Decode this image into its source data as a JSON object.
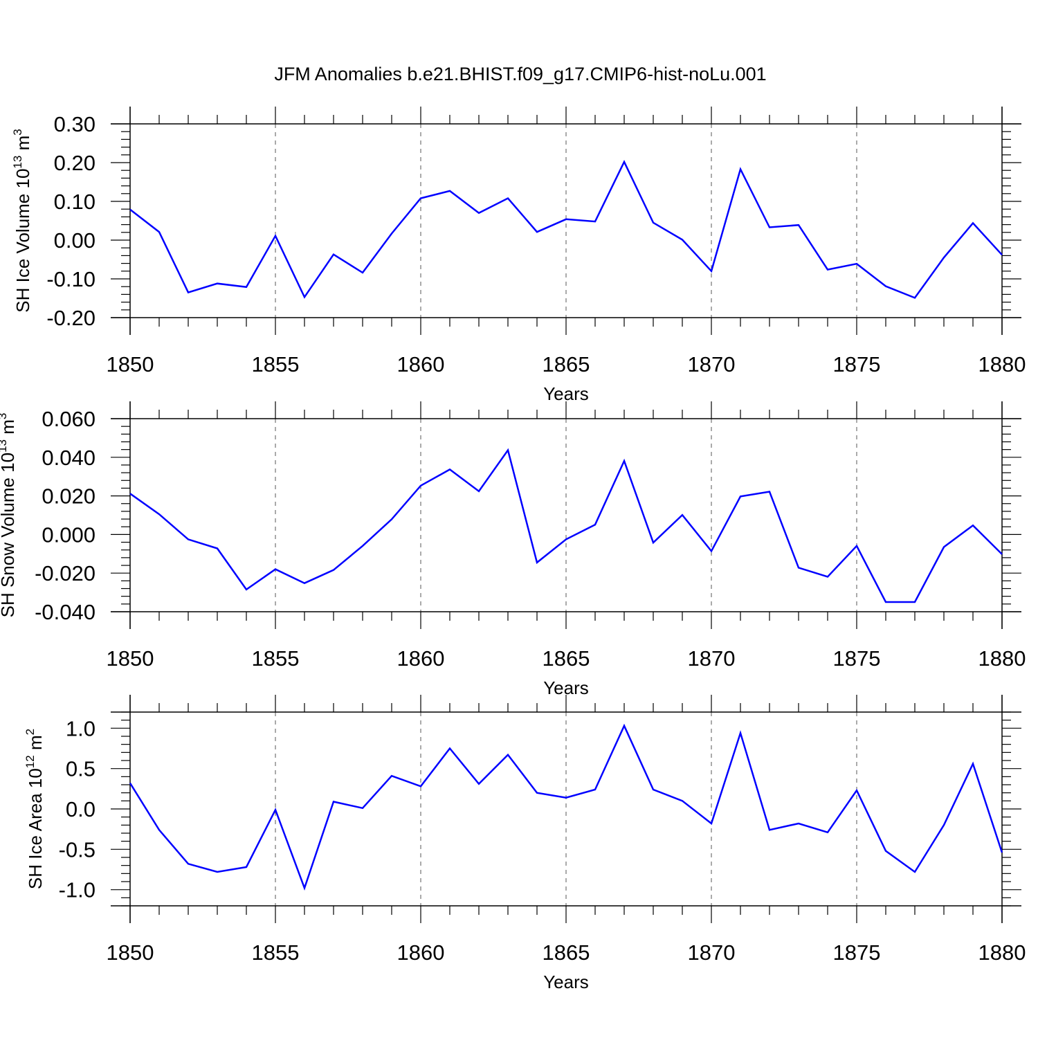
{
  "title": "JFM Anomalies b.e21.BHIST.f09_g17.CMIP6-hist-noLu.001",
  "chart_data": [
    {
      "type": "line",
      "ylabel": {
        "main": "SH Ice Volume 10",
        "exp": "13",
        "unit": " m",
        "unit_exp": "3"
      },
      "xlabel": "Years",
      "xlim": [
        1850,
        1880
      ],
      "ylim": [
        -0.2,
        0.3
      ],
      "y_ticks": [
        -0.2,
        -0.1,
        0.0,
        0.1,
        0.2,
        0.3
      ],
      "y_tick_labels": [
        "-0.20",
        "-0.10",
        "0.00",
        "0.10",
        "0.20",
        "0.30"
      ],
      "x_ticks": [
        1850,
        1855,
        1860,
        1865,
        1870,
        1875,
        1880
      ],
      "x_tick_labels": [
        "1850",
        "1855",
        "1860",
        "1865",
        "1870",
        "1875",
        "1880"
      ],
      "series": [
        {
          "name": "SH Ice Volume",
          "color": "#0000ff",
          "x": [
            1850,
            1851,
            1852,
            1853,
            1854,
            1855,
            1856,
            1857,
            1858,
            1859,
            1860,
            1861,
            1862,
            1863,
            1864,
            1865,
            1866,
            1867,
            1868,
            1869,
            1870,
            1871,
            1872,
            1873,
            1874,
            1875,
            1876,
            1877,
            1878,
            1879,
            1880
          ],
          "values": [
            0.079,
            0.021,
            -0.135,
            -0.112,
            -0.121,
            0.011,
            -0.147,
            -0.037,
            -0.084,
            0.017,
            0.108,
            0.127,
            0.07,
            0.108,
            0.021,
            0.054,
            0.048,
            0.202,
            0.045,
            0.001,
            -0.08,
            0.183,
            0.033,
            0.039,
            -0.076,
            -0.061,
            -0.119,
            -0.149,
            -0.045,
            0.044,
            -0.038
          ]
        }
      ]
    },
    {
      "type": "line",
      "ylabel": {
        "main": "SH Snow Volume 10",
        "exp": "13",
        "unit": " m",
        "unit_exp": "3"
      },
      "xlabel": "Years",
      "xlim": [
        1850,
        1880
      ],
      "ylim": [
        -0.04,
        0.06
      ],
      "y_ticks": [
        -0.04,
        -0.02,
        0.0,
        0.02,
        0.04,
        0.06
      ],
      "y_tick_labels": [
        "-0.040",
        "-0.020",
        "0.000",
        "0.020",
        "0.040",
        "0.060"
      ],
      "x_ticks": [
        1850,
        1855,
        1860,
        1865,
        1870,
        1875,
        1880
      ],
      "x_tick_labels": [
        "1850",
        "1855",
        "1860",
        "1865",
        "1870",
        "1875",
        "1880"
      ],
      "series": [
        {
          "name": "SH Snow Volume",
          "color": "#0000ff",
          "x": [
            1850,
            1851,
            1852,
            1853,
            1854,
            1855,
            1856,
            1857,
            1858,
            1859,
            1860,
            1861,
            1862,
            1863,
            1864,
            1865,
            1866,
            1867,
            1868,
            1869,
            1870,
            1871,
            1872,
            1873,
            1874,
            1875,
            1876,
            1877,
            1878,
            1879,
            1880
          ],
          "values": [
            0.0212,
            0.0105,
            -0.0025,
            -0.0072,
            -0.0285,
            -0.018,
            -0.0252,
            -0.0184,
            -0.0059,
            0.0079,
            0.0253,
            0.0337,
            0.0224,
            0.0437,
            -0.0145,
            -0.0025,
            0.0051,
            0.0381,
            -0.0042,
            0.0101,
            -0.0086,
            0.0197,
            0.0222,
            -0.0172,
            -0.0219,
            -0.0059,
            -0.035,
            -0.035,
            -0.0065,
            0.0047,
            -0.0102
          ]
        }
      ]
    },
    {
      "type": "line",
      "ylabel": {
        "main": "SH Ice Area 10",
        "exp": "12",
        "unit": " m",
        "unit_exp": "2"
      },
      "xlabel": "Years",
      "xlim": [
        1850,
        1880
      ],
      "ylim": [
        -1.2,
        1.2
      ],
      "y_ticks": [
        -1.0,
        -0.5,
        0.0,
        0.5,
        1.0
      ],
      "y_tick_labels": [
        "-1.0",
        "-0.5",
        "0.0",
        "0.5",
        "1.0"
      ],
      "x_ticks": [
        1850,
        1855,
        1860,
        1865,
        1870,
        1875,
        1880
      ],
      "x_tick_labels": [
        "1850",
        "1855",
        "1860",
        "1865",
        "1870",
        "1875",
        "1880"
      ],
      "series": [
        {
          "name": "SH Ice Area",
          "color": "#0000ff",
          "x": [
            1850,
            1851,
            1852,
            1853,
            1854,
            1855,
            1856,
            1857,
            1858,
            1859,
            1860,
            1861,
            1862,
            1863,
            1864,
            1865,
            1866,
            1867,
            1868,
            1869,
            1870,
            1871,
            1872,
            1873,
            1874,
            1875,
            1876,
            1877,
            1878,
            1879,
            1880
          ],
          "values": [
            0.32,
            -0.26,
            -0.68,
            -0.78,
            -0.72,
            -0.01,
            -0.98,
            0.09,
            0.01,
            0.41,
            0.28,
            0.75,
            0.31,
            0.67,
            0.2,
            0.14,
            0.24,
            1.03,
            0.24,
            0.1,
            -0.18,
            0.94,
            -0.26,
            -0.18,
            -0.29,
            0.23,
            -0.52,
            -0.78,
            -0.2,
            0.56,
            -0.54
          ]
        }
      ]
    }
  ]
}
